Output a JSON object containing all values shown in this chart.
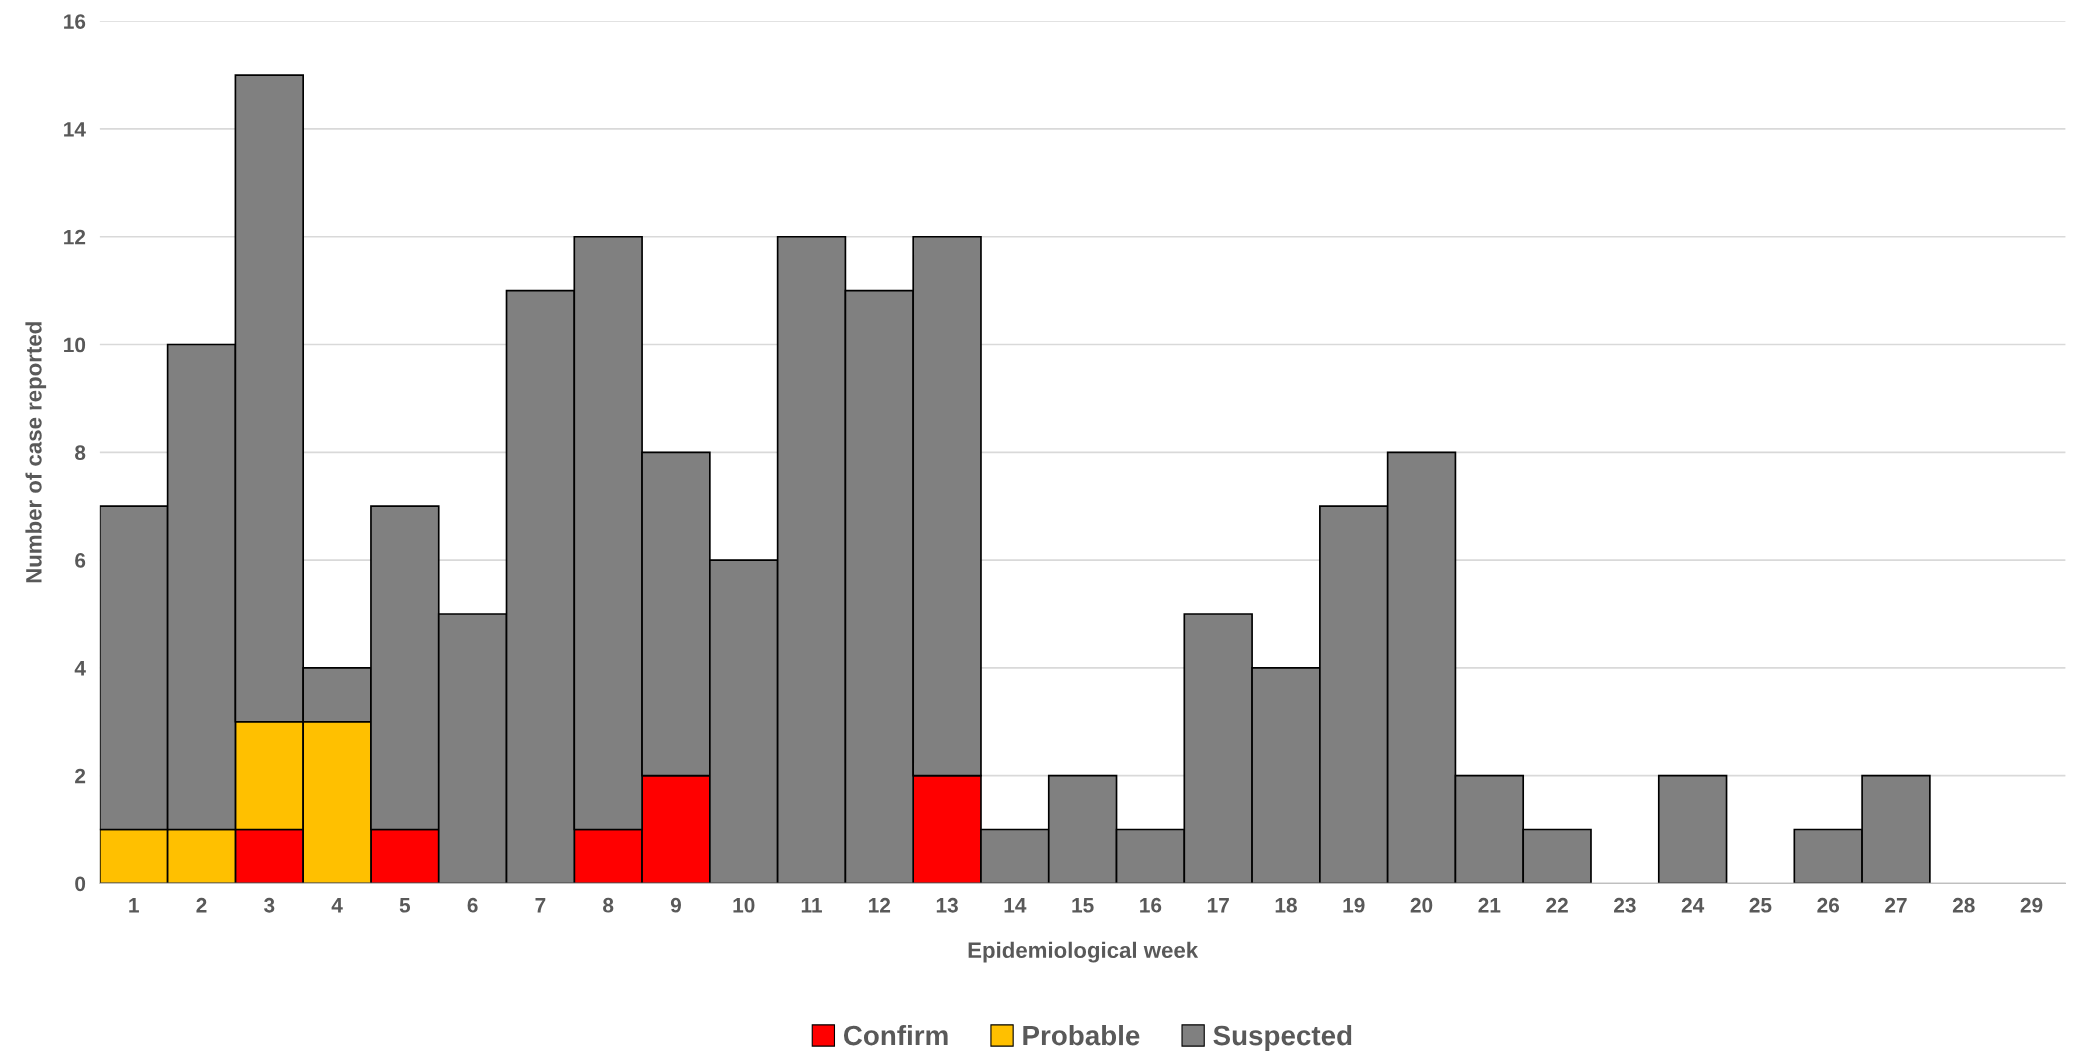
{
  "chart_data": {
    "type": "bar",
    "stacked": true,
    "xlabel": "Epidemiological week",
    "ylabel": "Number of case reported",
    "categories": [
      "1",
      "2",
      "3",
      "4",
      "5",
      "6",
      "7",
      "8",
      "9",
      "10",
      "11",
      "12",
      "13",
      "14",
      "15",
      "16",
      "17",
      "18",
      "19",
      "20",
      "21",
      "22",
      "23",
      "24",
      "25",
      "26",
      "27",
      "28",
      "29"
    ],
    "series": [
      {
        "name": "Confirm",
        "color": "#ff0000",
        "values": [
          0,
          0,
          1,
          0,
          1,
          0,
          0,
          1,
          2,
          0,
          0,
          0,
          2,
          0,
          0,
          0,
          0,
          0,
          0,
          0,
          0,
          0,
          0,
          0,
          0,
          0,
          0,
          0,
          0
        ]
      },
      {
        "name": "Probable",
        "color": "#ffc000",
        "values": [
          1,
          1,
          2,
          3,
          0,
          0,
          0,
          0,
          0,
          0,
          0,
          0,
          0,
          0,
          0,
          0,
          0,
          0,
          0,
          0,
          0,
          0,
          0,
          0,
          0,
          0,
          0,
          0,
          0
        ]
      },
      {
        "name": "Suspected",
        "color": "#808080",
        "values": [
          6,
          9,
          12,
          1,
          6,
          5,
          11,
          11,
          6,
          6,
          12,
          11,
          10,
          1,
          2,
          1,
          5,
          4,
          7,
          8,
          2,
          1,
          0,
          2,
          0,
          1,
          2,
          0,
          0
        ]
      }
    ],
    "ylim": [
      0,
      16
    ],
    "yticks": [
      0,
      2,
      4,
      6,
      8,
      10,
      12,
      14,
      16
    ],
    "grid": "y",
    "legend": "bottom"
  }
}
